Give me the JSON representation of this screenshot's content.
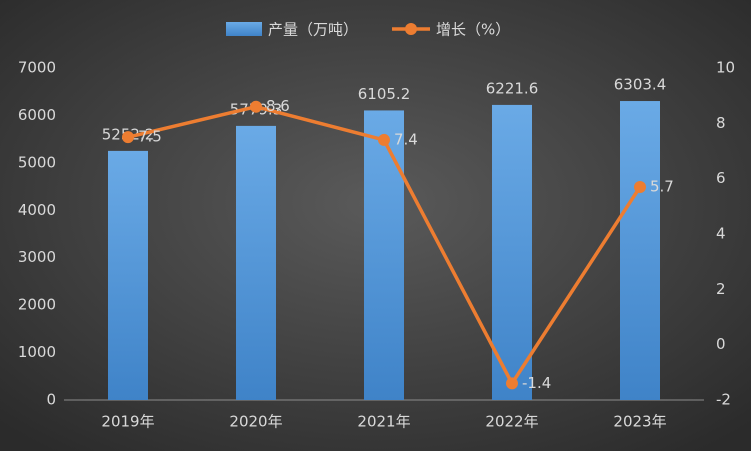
{
  "chart_data": {
    "type": "bar",
    "categories": [
      "2019年",
      "2020年",
      "2021年",
      "2022年",
      "2023年"
    ],
    "series": [
      {
        "name": "产量（万吨）",
        "type": "bar",
        "color": "#5b9bd5",
        "values": [
          5252.2,
          5779.3,
          6105.2,
          6221.6,
          6303.4
        ]
      },
      {
        "name": "增长（%）",
        "type": "line",
        "color": "#ed7d31",
        "axis": "y2",
        "values": [
          7.5,
          8.6,
          7.4,
          -1.4,
          5.7
        ]
      }
    ],
    "ylim": [
      0,
      7000
    ],
    "yticks": [
      0,
      1000,
      2000,
      3000,
      4000,
      5000,
      6000,
      7000
    ],
    "y2lim": [
      -2,
      10
    ],
    "y2ticks": [
      -2,
      0,
      2,
      4,
      6,
      8,
      10
    ],
    "legend": "top",
    "grid": false
  }
}
